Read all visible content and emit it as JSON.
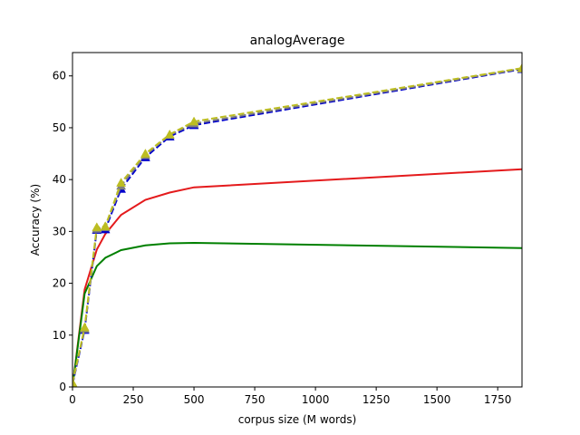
{
  "chart_data": {
    "type": "line",
    "title": "analogAverage",
    "xlabel": "corpus size (M words)",
    "ylabel": "Accuracy (%)",
    "xlim": [
      0,
      1850
    ],
    "ylim": [
      0,
      64.5
    ],
    "xticks": [
      0,
      250,
      500,
      750,
      1000,
      1250,
      1500,
      1750
    ],
    "yticks": [
      0,
      10,
      20,
      30,
      40,
      50,
      60
    ],
    "grid": false,
    "series": [
      {
        "name": "red",
        "color": "#e41a1c",
        "style": "solid",
        "marker": "none",
        "x": [
          0,
          50,
          100,
          135,
          200,
          300,
          400,
          500,
          1850
        ],
        "y": [
          0,
          18.8,
          26.5,
          29.5,
          33.2,
          36.1,
          37.5,
          38.5,
          42
        ]
      },
      {
        "name": "green",
        "color": "#008000",
        "style": "solid",
        "marker": "none",
        "x": [
          0,
          50,
          100,
          135,
          200,
          300,
          400,
          500,
          1850
        ],
        "y": [
          0,
          18,
          23.3,
          24.9,
          26.4,
          27.3,
          27.7,
          27.8,
          26.8
        ]
      },
      {
        "name": "blue",
        "color": "#0000cc",
        "style": "dashed",
        "marker": "triangle",
        "x": [
          0,
          50,
          100,
          135,
          200,
          300,
          400,
          500,
          1850
        ],
        "y": [
          0.5,
          11,
          30.3,
          30.4,
          38.2,
          44.3,
          48.3,
          50.5,
          61.3
        ]
      },
      {
        "name": "gray",
        "color": "#7f7f7f",
        "style": "dashed",
        "marker": "triangle",
        "x": [
          0,
          50,
          100,
          135,
          200,
          300,
          400,
          500,
          1850
        ],
        "y": [
          0.7,
          11.2,
          30.5,
          30.8,
          38.8,
          44.7,
          48.6,
          50.8,
          61.4
        ]
      },
      {
        "name": "olive",
        "color": "#bcbd22",
        "style": "dashed",
        "marker": "triangle",
        "x": [
          0,
          50,
          100,
          135,
          200,
          300,
          400,
          500,
          1850
        ],
        "y": [
          0.8,
          11.5,
          30.8,
          31,
          39.4,
          45,
          48.7,
          51.2,
          61.5
        ]
      }
    ]
  }
}
